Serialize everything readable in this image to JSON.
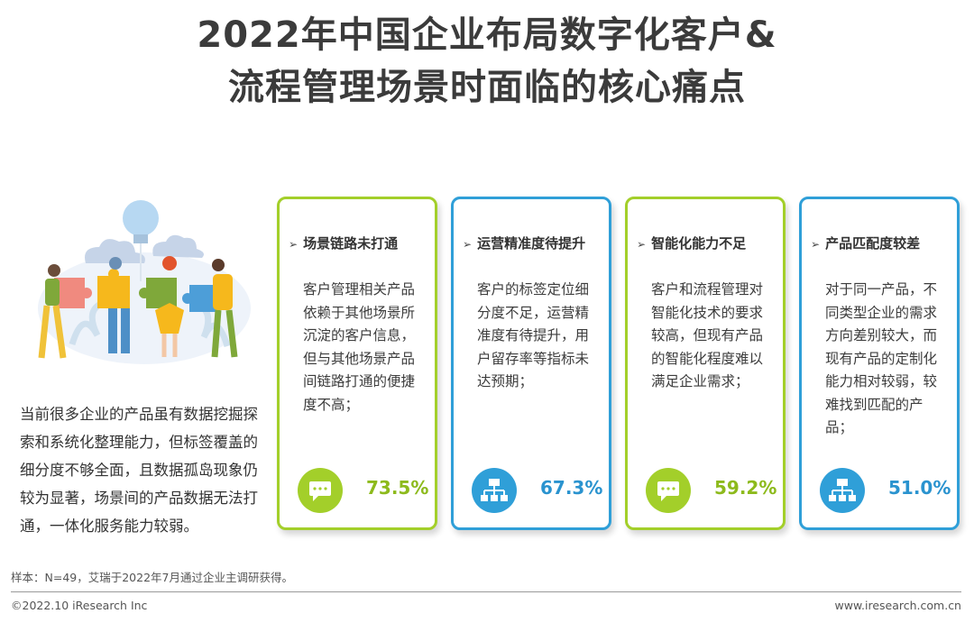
{
  "title": {
    "line1": "2022年中国企业布局数字化客户&",
    "line2": "流程管理场景时面临的核心痛点"
  },
  "intro": "当前很多企业的产品虽有数据挖掘探索和系统化整理能力，但标签覆盖的细分度不够全面，且数据孤岛现象仍较为显著，场景间的产品数据无法打通，一体化服务能力较弱。",
  "cards": [
    {
      "title": "场景链路未打通",
      "text": "客户管理相关产品依赖于其他场景所沉淀的客户信息，但与其他场景产品间链路打通的便捷度不高；",
      "value": "73.5%",
      "icon": "chat-bubble-icon",
      "color": "#a3cf2a"
    },
    {
      "title": "运营精准度待提升",
      "text": "客户的标签定位细分度不足，运营精准度有待提升，用户留存率等指标未达预期；",
      "value": "67.3%",
      "icon": "hierarchy-icon",
      "color": "#2f9fd8"
    },
    {
      "title": "智能化能力不足",
      "text": "客户和流程管理对智能化技术的要求较高，但现有产品的智能化程度难以满足企业需求；",
      "value": "59.2%",
      "icon": "chat-bubble-icon",
      "color": "#a3cf2a"
    },
    {
      "title": "产品匹配度较差",
      "text": "对于同一产品，不同类型企业的需求方向差别较大，而现有产品的定制化能力相对较弱，较难找到匹配的产品；",
      "value": "51.0%",
      "icon": "hierarchy-icon",
      "color": "#2f9fd8"
    }
  ],
  "footer": {
    "note": "样本：N=49，艾瑞于2022年7月通过企业主调研获得。",
    "copyright": "©2022.10 iResearch Inc",
    "website": "www.iresearch.com.cn"
  }
}
